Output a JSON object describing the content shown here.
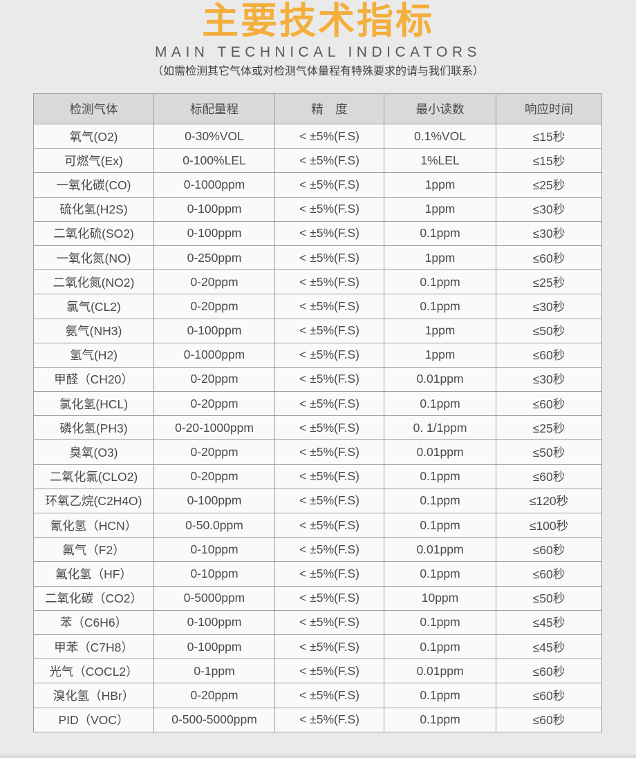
{
  "header": {
    "title": "主要技术指标",
    "subtitle": "MAIN TECHNICAL INDICATORS",
    "note": "（如需检测其它气体或对检测气体量程有特殊要求的请与我们联系）"
  },
  "colors": {
    "title_accent": "#F3AE3C",
    "page_background": "#EAEAEA",
    "table_header_background": "#D9D9D9",
    "table_row_background": "#FAFAFA",
    "table_border": "#9E9E9E",
    "body_text": "#4A4A4A"
  },
  "table": {
    "columns": [
      "检测气体",
      "标配量程",
      "精　度",
      "最小读数",
      "响应时间"
    ],
    "column_keys": [
      "gas",
      "range",
      "accuracy",
      "min-reading",
      "response-time"
    ],
    "rows": [
      {
        "gas": "氧气(O2)",
        "range": "0-30%VOL",
        "accuracy": "< ±5%(F.S)",
        "min_reading": "0.1%VOL",
        "response_time": "≤15秒"
      },
      {
        "gas": "可燃气(Ex)",
        "range": "0-100%LEL",
        "accuracy": "< ±5%(F.S)",
        "min_reading": "1%LEL",
        "response_time": "≤15秒"
      },
      {
        "gas": "一氧化碳(CO)",
        "range": "0-1000ppm",
        "accuracy": "< ±5%(F.S)",
        "min_reading": "1ppm",
        "response_time": "≤25秒"
      },
      {
        "gas": "硫化氢(H2S)",
        "range": "0-100ppm",
        "accuracy": "< ±5%(F.S)",
        "min_reading": "1ppm",
        "response_time": "≤30秒"
      },
      {
        "gas": "二氧化硫(SO2)",
        "range": "0-100ppm",
        "accuracy": "< ±5%(F.S)",
        "min_reading": "0.1ppm",
        "response_time": "≤30秒"
      },
      {
        "gas": "一氧化氮(NO)",
        "range": "0-250ppm",
        "accuracy": "< ±5%(F.S)",
        "min_reading": "1ppm",
        "response_time": "≤60秒"
      },
      {
        "gas": "二氧化氮(NO2)",
        "range": "0-20ppm",
        "accuracy": "< ±5%(F.S)",
        "min_reading": "0.1ppm",
        "response_time": "≤25秒"
      },
      {
        "gas": "氯气(CL2)",
        "range": "0-20ppm",
        "accuracy": "< ±5%(F.S)",
        "min_reading": "0.1ppm",
        "response_time": "≤30秒"
      },
      {
        "gas": "氨气(NH3)",
        "range": "0-100ppm",
        "accuracy": "< ±5%(F.S)",
        "min_reading": "1ppm",
        "response_time": "≤50秒"
      },
      {
        "gas": "氢气(H2)",
        "range": "0-1000ppm",
        "accuracy": "< ±5%(F.S)",
        "min_reading": "1ppm",
        "response_time": "≤60秒"
      },
      {
        "gas": "甲醛（CH20）",
        "range": "0-20ppm",
        "accuracy": "< ±5%(F.S)",
        "min_reading": "0.01ppm",
        "response_time": "≤30秒"
      },
      {
        "gas": "氯化氢(HCL)",
        "range": "0-20ppm",
        "accuracy": "< ±5%(F.S)",
        "min_reading": "0.1ppm",
        "response_time": "≤60秒"
      },
      {
        "gas": "磷化氢(PH3)",
        "range": "0-20-1000ppm",
        "accuracy": "< ±5%(F.S)",
        "min_reading": "0. 1/1ppm",
        "response_time": "≤25秒"
      },
      {
        "gas": "臭氧(O3)",
        "range": "0-20ppm",
        "accuracy": "< ±5%(F.S)",
        "min_reading": "0.01ppm",
        "response_time": "≤50秒"
      },
      {
        "gas": "二氧化氯(CLO2)",
        "range": "0-20ppm",
        "accuracy": "< ±5%(F.S)",
        "min_reading": "0.1ppm",
        "response_time": "≤60秒"
      },
      {
        "gas": "环氧乙烷(C2H4O)",
        "range": "0-100ppm",
        "accuracy": "< ±5%(F.S)",
        "min_reading": "0.1ppm",
        "response_time": "≤120秒"
      },
      {
        "gas": "氰化氢（HCN）",
        "range": "0-50.0ppm",
        "accuracy": "< ±5%(F.S)",
        "min_reading": "0.1ppm",
        "response_time": "≤100秒"
      },
      {
        "gas": "氟气（F2）",
        "range": "0-10ppm",
        "accuracy": "< ±5%(F.S)",
        "min_reading": "0.01ppm",
        "response_time": "≤60秒"
      },
      {
        "gas": "氟化氢（HF）",
        "range": "0-10ppm",
        "accuracy": "< ±5%(F.S)",
        "min_reading": "0.1ppm",
        "response_time": "≤60秒"
      },
      {
        "gas": "二氧化碳（CO2）",
        "range": "0-5000ppm",
        "accuracy": "< ±5%(F.S)",
        "min_reading": "10ppm",
        "response_time": "≤50秒"
      },
      {
        "gas": "苯（C6H6）",
        "range": "0-100ppm",
        "accuracy": "< ±5%(F.S)",
        "min_reading": "0.1ppm",
        "response_time": "≤45秒"
      },
      {
        "gas": "甲苯（C7H8）",
        "range": "0-100ppm",
        "accuracy": "< ±5%(F.S)",
        "min_reading": "0.1ppm",
        "response_time": "≤45秒"
      },
      {
        "gas": "光气（COCL2）",
        "range": "0-1ppm",
        "accuracy": "< ±5%(F.S)",
        "min_reading": "0.01ppm",
        "response_time": "≤60秒"
      },
      {
        "gas": "溴化氢（HBr）",
        "range": "0-20ppm",
        "accuracy": "< ±5%(F.S)",
        "min_reading": "0.1ppm",
        "response_time": "≤60秒"
      },
      {
        "gas": "PID（VOC）",
        "range": "0-500-5000ppm",
        "accuracy": "< ±5%(F.S)",
        "min_reading": "0.1ppm",
        "response_time": "≤60秒"
      }
    ]
  }
}
